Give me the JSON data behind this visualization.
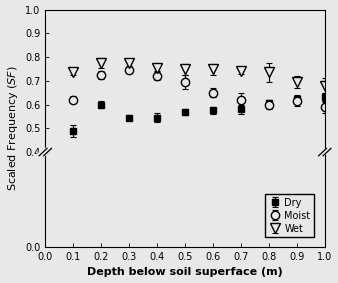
{
  "depth": [
    0.1,
    0.2,
    0.3,
    0.4,
    0.5,
    0.6,
    0.7,
    0.8,
    0.9,
    1.0
  ],
  "dry_sf": [
    0.49,
    0.6,
    0.545,
    0.545,
    0.57,
    0.575,
    0.58,
    0.605,
    0.625,
    0.63
  ],
  "dry_err": [
    0.025,
    0.015,
    0.012,
    0.018,
    0.012,
    0.015,
    0.018,
    0.015,
    0.015,
    0.02
  ],
  "moist_sf": [
    0.62,
    0.725,
    0.745,
    0.72,
    0.695,
    0.65,
    0.62,
    0.6,
    0.615,
    0.59
  ],
  "moist_err": [
    0.015,
    0.018,
    0.012,
    0.015,
    0.03,
    0.02,
    0.03,
    0.02,
    0.02,
    0.025
  ],
  "wet_sf": [
    0.735,
    0.775,
    0.775,
    0.755,
    0.748,
    0.748,
    0.74,
    0.735,
    0.695,
    0.68
  ],
  "wet_err": [
    0.01,
    0.022,
    0.012,
    0.015,
    0.022,
    0.022,
    0.01,
    0.04,
    0.025,
    0.03
  ],
  "xlabel": "Depth below soil superface (m)",
  "ylabel": "Scaled Frequency ($\\it{SF}$)",
  "yticks_shown": [
    0.0,
    0.4,
    0.5,
    0.6,
    0.7,
    0.8,
    0.9,
    1.0
  ],
  "ytick_labels": [
    "0.0",
    "0.4",
    "0.5",
    "0.6",
    "0.7",
    "0.8",
    "0.9",
    "1.0"
  ],
  "xticks": [
    0.0,
    0.1,
    0.2,
    0.3,
    0.4,
    0.5,
    0.6,
    0.7,
    0.8,
    0.9,
    1.0
  ],
  "legend_labels": [
    "Dry",
    "Moist",
    "Wet"
  ],
  "bg_color": "#e8e8e8"
}
